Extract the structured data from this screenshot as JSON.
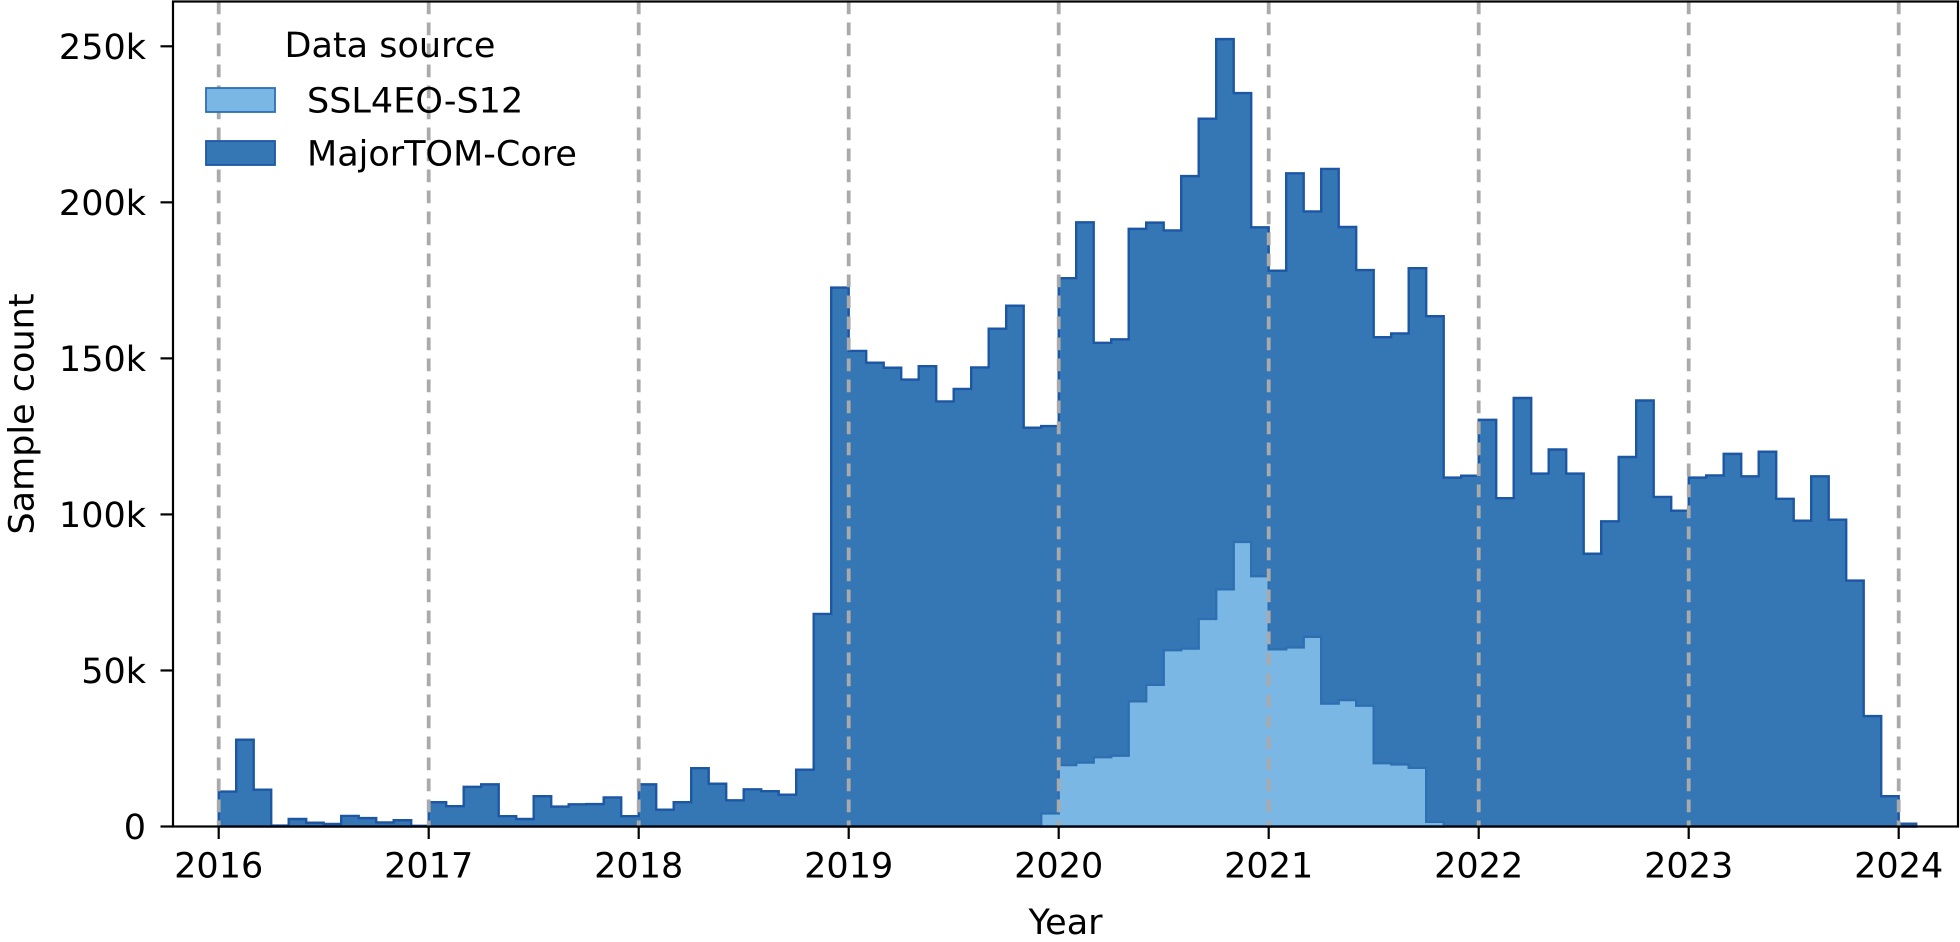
{
  "chart_data": {
    "type": "bar",
    "subtype": "step-histogram",
    "title": "",
    "xlabel": "Year",
    "ylabel": "Sample count",
    "x_unit": "month",
    "xlim": [
      2015.78,
      2024.28
    ],
    "ylim_k": [
      0,
      264
    ],
    "grid": "vertical-dashed-on-top",
    "x_ticks": [
      2016,
      2017,
      2018,
      2019,
      2020,
      2021,
      2022,
      2023,
      2024
    ],
    "x_tick_labels": [
      "2016",
      "2017",
      "2018",
      "2019",
      "2020",
      "2021",
      "2022",
      "2023",
      "2024"
    ],
    "y_ticks_k": [
      0,
      50,
      100,
      150,
      200,
      250
    ],
    "y_tick_labels": [
      "0",
      "50k",
      "100k",
      "150k",
      "200k",
      "250k"
    ],
    "legend": {
      "title": "Data source",
      "position": "upper left"
    },
    "series": [
      {
        "name": "SSL4EO-S12",
        "fill_color": "#7ab7e5",
        "edge_color": "#2e6fb2",
        "bin_start": "2019-12",
        "bin_width_months": 1,
        "values_k": [
          4.2,
          19.7,
          20.5,
          22.2,
          22.7,
          40.1,
          45.4,
          56.5,
          57.0,
          66.5,
          76.0,
          91.2,
          80.2,
          56.8,
          57.4,
          60.8,
          39.4,
          40.5,
          38.7,
          20.3,
          19.9,
          18.8,
          1.5
        ]
      },
      {
        "name": "MajorTOM-Core",
        "fill_color": "#3577b5",
        "edge_color": "#1d57a4",
        "bin_start": "2016-01",
        "bin_width_months": 1,
        "values_k": [
          11.2,
          27.8,
          11.8,
          0.3,
          2.4,
          1.2,
          0.8,
          3.4,
          2.7,
          1.3,
          2.0,
          0.2,
          7.8,
          6.5,
          12.7,
          13.5,
          3.3,
          2.4,
          9.7,
          6.4,
          7.1,
          7.2,
          9.3,
          3.3,
          13.5,
          5.4,
          7.8,
          18.7,
          13.7,
          8.4,
          11.9,
          11.3,
          10.2,
          18.2,
          68.1,
          172.7,
          152.4,
          148.6,
          147.0,
          143.2,
          147.5,
          136.2,
          140.2,
          147.1,
          159.5,
          166.9,
          127.8,
          128.3,
          175.7,
          193.6,
          155.0,
          156.1,
          191.5,
          193.5,
          191.0,
          208.4,
          226.8,
          252.3,
          235.0,
          192.0,
          178.1,
          209.3,
          197.1,
          210.7,
          192.1,
          178.3,
          156.8,
          158.0,
          178.9,
          163.5,
          111.8,
          112.4,
          130.3,
          105.2,
          137.3,
          113.1,
          120.8,
          113.1,
          87.4,
          97.8,
          118.4,
          136.5,
          105.6,
          101.2,
          111.8,
          112.5,
          119.4,
          112.2,
          120.1,
          105.0,
          98.0,
          112.2,
          98.3,
          78.8,
          35.4,
          9.7,
          0.9
        ]
      }
    ],
    "draw_order": [
      1,
      0
    ],
    "axis_color": "#000000",
    "grid_color": "#aaaaaa",
    "background_color": "#ffffff"
  }
}
